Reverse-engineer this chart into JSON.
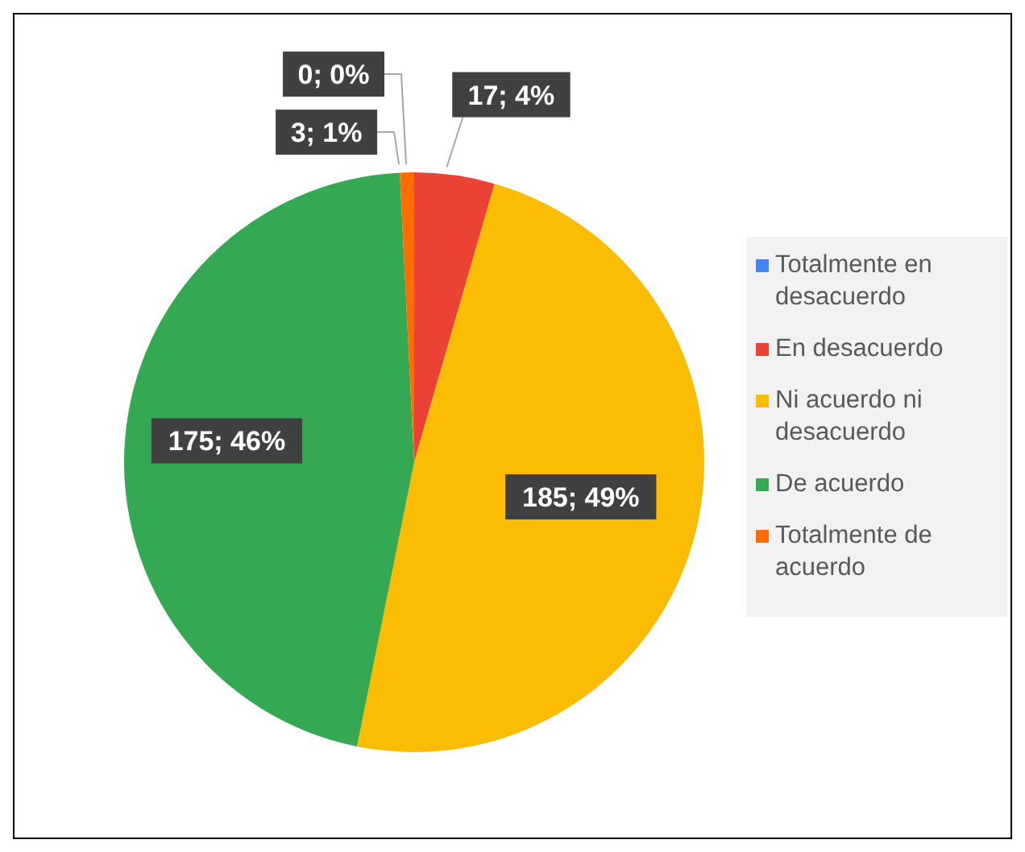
{
  "chart_data": {
    "type": "pie",
    "categories": [
      "Totalmente en desacuerdo",
      "En desacuerdo",
      "Ni acuerdo ni desacuerdo",
      "De acuerdo",
      "Totalmente de acuerdo"
    ],
    "values": [
      0,
      17,
      185,
      175,
      3
    ],
    "colors": [
      "#4285f4",
      "#ea4335",
      "#fbbc04",
      "#34a853",
      "#ff6d01"
    ],
    "value_labels": [
      "0; 0%",
      "17; 4%",
      "185; 49%",
      "175; 46%",
      "3; 1%"
    ],
    "legend": "right"
  }
}
